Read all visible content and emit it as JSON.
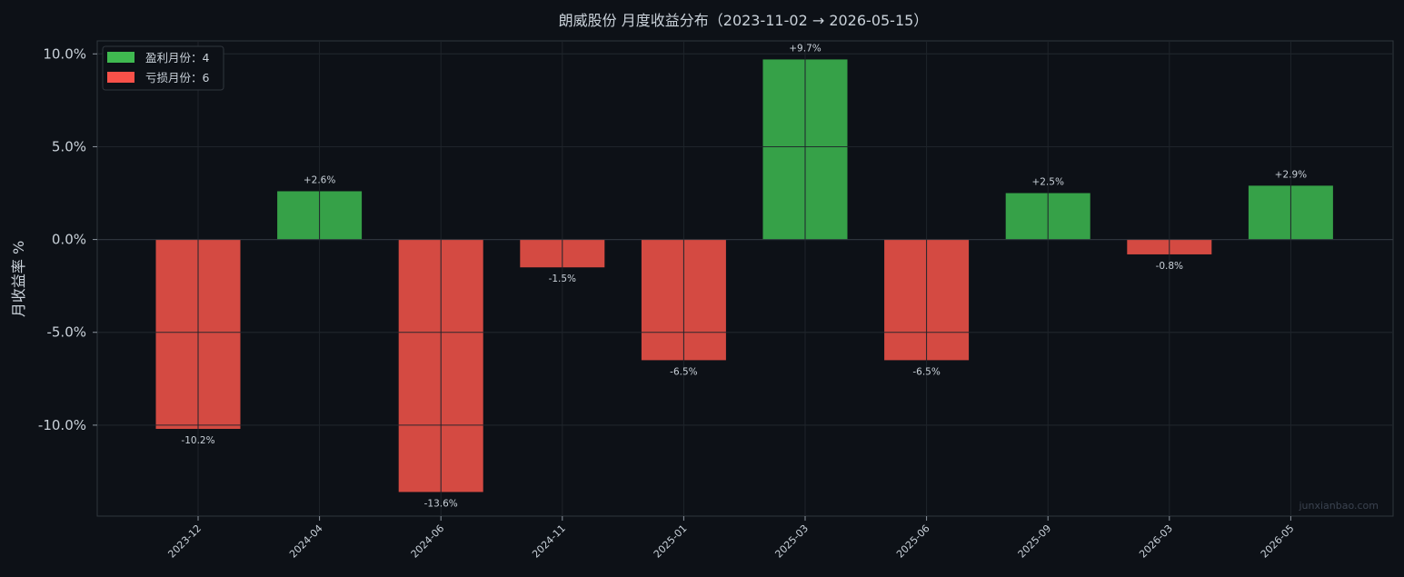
{
  "chart_data": {
    "type": "bar",
    "title": "朗威股份 月度收益分布（2023-11-02 → 2026-05-15）",
    "xlabel": "",
    "ylabel": "月收益率 %",
    "categories": [
      "2023-12",
      "2024-04",
      "2024-06",
      "2024-11",
      "2025-01",
      "2025-03",
      "2025-06",
      "2025-09",
      "2026-03",
      "2026-05"
    ],
    "values": [
      -10.2,
      2.6,
      -13.6,
      -1.5,
      -6.5,
      9.7,
      -6.5,
      2.5,
      -0.8,
      2.9
    ],
    "data_labels": [
      "-10.2%",
      "+2.6%",
      "-13.6%",
      "-1.5%",
      "-6.5%",
      "+9.7%",
      "-6.5%",
      "+2.5%",
      "-0.8%",
      "+2.9%"
    ],
    "yticks": [
      10,
      5,
      0,
      -5,
      -10
    ],
    "ytick_labels": [
      "10.0%",
      "5.0%",
      "0.0%",
      "-5.0%",
      "-10.0%"
    ],
    "ylim": [
      -14.9,
      10.7
    ],
    "grid": true,
    "legend": {
      "placement": "top-left",
      "entries": [
        {
          "label": "盈利月份：4",
          "color": "#3fb950"
        },
        {
          "label": "亏损月份：6",
          "color": "#f85149"
        }
      ]
    },
    "colors": {
      "positive": "#36a148",
      "negative": "#d44a42",
      "background": "#0d1117",
      "grid": "#21262d"
    },
    "watermark": "junxianbao.com"
  }
}
